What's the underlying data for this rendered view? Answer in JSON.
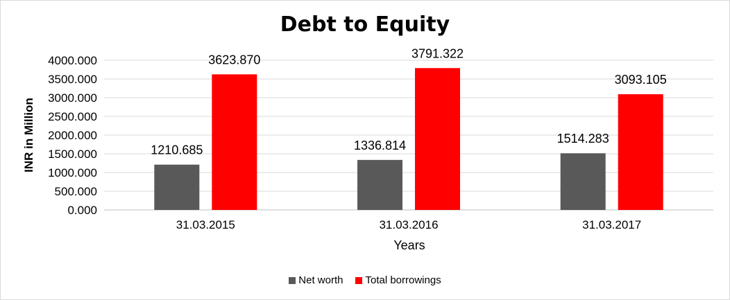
{
  "chart_data": {
    "type": "bar",
    "title": "Debt to Equity",
    "xlabel": "Years",
    "ylabel": "INR in Million",
    "categories": [
      "31.03.2015",
      "31.03.2016",
      "31.03.2017"
    ],
    "series": [
      {
        "name": "Net worth",
        "values": [
          1210.685,
          1336.814,
          1514.283
        ],
        "color": "#595959",
        "labels": [
          "1210.685",
          "1336.814",
          "1514.283"
        ]
      },
      {
        "name": "Total borrowings",
        "values": [
          3623.87,
          3791.322,
          3093.105
        ],
        "color": "#ff0000",
        "labels": [
          "3623.870",
          "3791.322",
          "3093.105"
        ]
      }
    ],
    "ylim": [
      0,
      4000
    ],
    "yticks": [
      "0.000",
      "500.000",
      "1000.000",
      "1500.000",
      "2000.000",
      "2500.000",
      "3000.000",
      "3500.000",
      "4000.000"
    ],
    "grid": true,
    "legend": "bottom"
  }
}
